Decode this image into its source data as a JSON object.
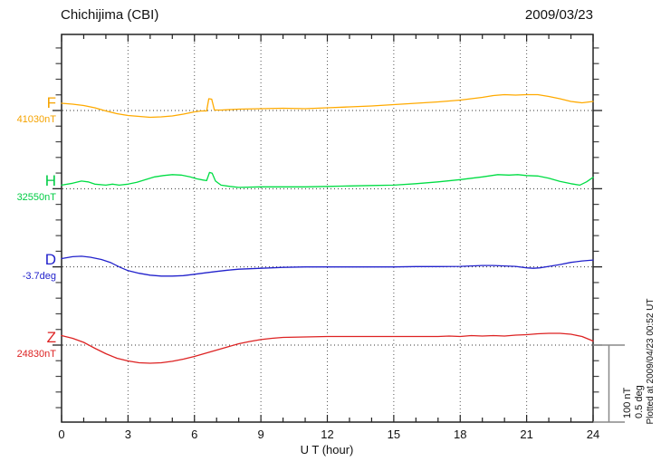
{
  "header": {
    "title": "Chichijima (CBI)",
    "date": "2009/03/23"
  },
  "footer_note": "Plotted at 2009/04/23 00:52 UT",
  "scale_bar": {
    "line1": "100 nT",
    "line2": "0.5 deg"
  },
  "x_axis": {
    "label": "U T (hour)",
    "ticks": [
      "0",
      "3",
      "6",
      "9",
      "12",
      "15",
      "18",
      "21",
      "24"
    ]
  },
  "chart_data": {
    "type": "line",
    "title": "Chichijima (CBI) magnetogram, 2009/03/23",
    "xlabel": "U T (hour)",
    "x_range_hours": [
      0,
      24
    ],
    "x_major_ticks": [
      0,
      3,
      6,
      9,
      12,
      15,
      18,
      21,
      24
    ],
    "grid": "dotted vertical lines every 3 hours; dotted horizontal baseline per channel",
    "legend_position": "left of each trace baseline",
    "scale": {
      "nT_per_division": 100,
      "deg_per_division": 0.5
    },
    "frame_color": "#222222",
    "grid_color": "#555555",
    "scalebar_color": "#888888",
    "series": [
      {
        "name": "F",
        "baseline_label": "41030nT",
        "baseline_value": 41030,
        "unit": "nT",
        "color": "#FFAA00",
        "points": [
          [
            0,
            9.3
          ],
          [
            0.5,
            8.1
          ],
          [
            1,
            6.4
          ],
          [
            1.5,
            3.5
          ],
          [
            2,
            -0.6
          ],
          [
            2.5,
            -4.1
          ],
          [
            3,
            -6.4
          ],
          [
            3.5,
            -7.5
          ],
          [
            4,
            -8.7
          ],
          [
            4.5,
            -8.1
          ],
          [
            5,
            -7
          ],
          [
            5.5,
            -4.6
          ],
          [
            6,
            -1.7
          ],
          [
            6.3,
            -0.6
          ],
          [
            6.55,
            -0.6
          ],
          [
            6.65,
            15.1
          ],
          [
            6.78,
            14.5
          ],
          [
            6.9,
            0.6
          ],
          [
            7.2,
            0.6
          ],
          [
            8,
            1.7
          ],
          [
            9,
            2.3
          ],
          [
            10,
            2.9
          ],
          [
            11,
            2.3
          ],
          [
            12,
            3.5
          ],
          [
            13,
            4.6
          ],
          [
            14,
            5.8
          ],
          [
            15,
            7.5
          ],
          [
            16,
            9.3
          ],
          [
            17,
            11
          ],
          [
            18,
            13.3
          ],
          [
            19,
            16.8
          ],
          [
            19.5,
            19.1
          ],
          [
            20,
            20.3
          ],
          [
            20.5,
            19.7
          ],
          [
            21,
            20.3
          ],
          [
            21.5,
            20.3
          ],
          [
            22,
            18
          ],
          [
            22.5,
            15.1
          ],
          [
            23,
            11.6
          ],
          [
            23.5,
            9.8
          ],
          [
            24,
            11.6
          ]
        ]
      },
      {
        "name": "H",
        "baseline_label": "32550nT",
        "baseline_value": 32550,
        "unit": "nT",
        "color": "#00DD44",
        "points": [
          [
            0,
            4.6
          ],
          [
            0.5,
            7
          ],
          [
            0.9,
            9.8
          ],
          [
            1.2,
            8.7
          ],
          [
            1.5,
            5.8
          ],
          [
            2,
            4.6
          ],
          [
            2.3,
            5.8
          ],
          [
            2.6,
            4.6
          ],
          [
            3,
            5.8
          ],
          [
            3.4,
            8.1
          ],
          [
            3.8,
            11.6
          ],
          [
            4.2,
            15.1
          ],
          [
            4.6,
            16.8
          ],
          [
            5,
            18
          ],
          [
            5.4,
            17.4
          ],
          [
            5.8,
            15.1
          ],
          [
            6.1,
            12.7
          ],
          [
            6.4,
            11
          ],
          [
            6.55,
            10.4
          ],
          [
            6.68,
            20.8
          ],
          [
            6.8,
            19.7
          ],
          [
            6.95,
            9.8
          ],
          [
            7.2,
            4.6
          ],
          [
            7.6,
            2.9
          ],
          [
            8,
            1.7
          ],
          [
            9,
            2.3
          ],
          [
            10,
            2.3
          ],
          [
            11,
            2.3
          ],
          [
            12,
            2.9
          ],
          [
            13,
            3.5
          ],
          [
            14,
            4.1
          ],
          [
            15,
            4.6
          ],
          [
            16,
            6.4
          ],
          [
            17,
            8.7
          ],
          [
            18,
            11.6
          ],
          [
            19,
            15.1
          ],
          [
            19.7,
            18
          ],
          [
            20.2,
            17.4
          ],
          [
            20.6,
            18
          ],
          [
            21,
            16.8
          ],
          [
            21.5,
            16.2
          ],
          [
            22,
            13.3
          ],
          [
            22.5,
            9.3
          ],
          [
            23,
            6.4
          ],
          [
            23.4,
            4.6
          ],
          [
            23.7,
            8.7
          ],
          [
            24,
            14.5
          ]
        ]
      },
      {
        "name": "D",
        "baseline_label": "-3.7deg",
        "baseline_value": -3.7,
        "unit": "deg",
        "color": "#2222CC",
        "points": [
          [
            0,
            0.053
          ],
          [
            0.5,
            0.065
          ],
          [
            0.9,
            0.068
          ],
          [
            1.3,
            0.062
          ],
          [
            1.8,
            0.047
          ],
          [
            2.2,
            0.029
          ],
          [
            2.65,
            -0.003
          ],
          [
            3,
            -0.024
          ],
          [
            3.5,
            -0.041
          ],
          [
            4,
            -0.053
          ],
          [
            4.5,
            -0.059
          ],
          [
            5,
            -0.059
          ],
          [
            5.5,
            -0.056
          ],
          [
            6,
            -0.047
          ],
          [
            6.5,
            -0.038
          ],
          [
            7,
            -0.029
          ],
          [
            7.5,
            -0.021
          ],
          [
            8,
            -0.015
          ],
          [
            8.5,
            -0.012
          ],
          [
            9,
            -0.009
          ],
          [
            9.5,
            -0.006
          ],
          [
            10,
            -0.003
          ],
          [
            11,
            0
          ],
          [
            12,
            0
          ],
          [
            13,
            0
          ],
          [
            14,
            0
          ],
          [
            15,
            0
          ],
          [
            16,
            0.002
          ],
          [
            17,
            0.002
          ],
          [
            18,
            0.003
          ],
          [
            18.5,
            0.006
          ],
          [
            19,
            0.009
          ],
          [
            19.5,
            0.009
          ],
          [
            20,
            0.006
          ],
          [
            20.5,
            0.003
          ],
          [
            21,
            -0.006
          ],
          [
            21.3,
            -0.009
          ],
          [
            21.6,
            -0.006
          ],
          [
            22,
            0.003
          ],
          [
            22.5,
            0.015
          ],
          [
            23,
            0.029
          ],
          [
            23.5,
            0.038
          ],
          [
            24,
            0.044
          ]
        ]
      },
      {
        "name": "Z",
        "baseline_label": "24830nT",
        "baseline_value": 24830,
        "unit": "nT",
        "color": "#DD2222",
        "points": [
          [
            0,
            12.2
          ],
          [
            0.5,
            8.7
          ],
          [
            1,
            3.5
          ],
          [
            1.5,
            -4.1
          ],
          [
            2,
            -11
          ],
          [
            2.5,
            -16.8
          ],
          [
            3,
            -20.3
          ],
          [
            3.5,
            -22.6
          ],
          [
            4,
            -23.2
          ],
          [
            4.5,
            -22.6
          ],
          [
            5,
            -20.8
          ],
          [
            5.5,
            -18
          ],
          [
            6,
            -14.5
          ],
          [
            6.5,
            -10.4
          ],
          [
            7,
            -6.4
          ],
          [
            7.5,
            -2.3
          ],
          [
            8,
            1.7
          ],
          [
            8.5,
            4.6
          ],
          [
            9,
            7
          ],
          [
            9.5,
            8.7
          ],
          [
            10,
            9.8
          ],
          [
            11,
            10.4
          ],
          [
            12,
            11
          ],
          [
            13,
            11
          ],
          [
            14,
            11
          ],
          [
            15,
            11
          ],
          [
            16,
            11
          ],
          [
            17,
            11
          ],
          [
            17.5,
            11.6
          ],
          [
            18,
            11
          ],
          [
            18.5,
            12.2
          ],
          [
            19,
            11.6
          ],
          [
            19.5,
            12.2
          ],
          [
            20,
            11.6
          ],
          [
            20.5,
            12.7
          ],
          [
            21,
            13.3
          ],
          [
            21.5,
            14.5
          ],
          [
            22,
            15.1
          ],
          [
            22.5,
            15.1
          ],
          [
            23,
            13.9
          ],
          [
            23.5,
            11
          ],
          [
            24,
            5.2
          ]
        ]
      }
    ]
  }
}
